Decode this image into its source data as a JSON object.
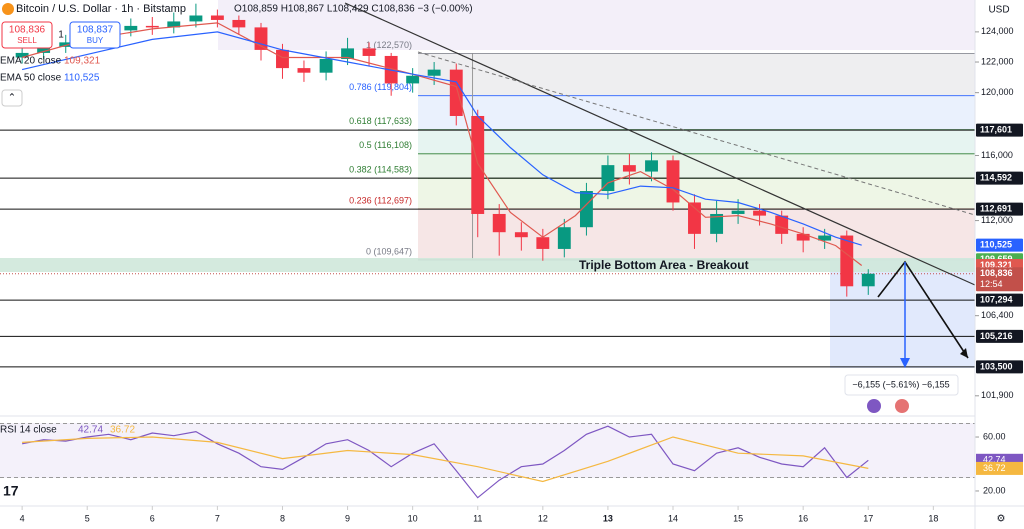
{
  "header": {
    "symbol": "Bitcoin / U.S. Dollar · 1h · Bitstamp",
    "ohlc": "O108,859 H108,867 L108,429 C108,836 −3 (−0.00%)",
    "sell_price": "108,836",
    "sell": "SELL",
    "qty": "1",
    "buy_price": "108,837",
    "buy": "BUY",
    "currency": "USD"
  },
  "chart_data": {
    "type": "candlestick",
    "x": [
      4,
      4.33,
      4.67,
      5,
      5.33,
      5.67,
      6,
      6.33,
      6.67,
      7,
      7.33,
      7.67,
      8,
      8.33,
      8.67,
      9,
      9.33,
      9.67,
      10,
      10.33,
      10.67,
      11,
      11.33,
      11.67,
      12,
      12.33,
      12.67,
      13,
      13.33,
      13.67,
      14,
      14.33,
      14.67,
      15,
      15.33,
      15.67,
      16,
      16.33,
      16.67,
      17
    ],
    "open": [
      122300,
      122600,
      123000,
      123300,
      123700,
      124100,
      124400,
      124300,
      124700,
      125100,
      124800,
      124300,
      122800,
      121600,
      121300,
      122200,
      122900,
      122400,
      120600,
      121100,
      121500,
      118500,
      112400,
      111300,
      111000,
      110300,
      111600,
      113800,
      115400,
      115000,
      115700,
      113100,
      111200,
      112400,
      112600,
      112300,
      111200,
      110800,
      111100,
      108100
    ],
    "high": [
      123100,
      123400,
      123800,
      124200,
      124500,
      124900,
      125000,
      125300,
      125900,
      125500,
      125100,
      124600,
      123200,
      122100,
      122700,
      123600,
      123300,
      122600,
      121600,
      122000,
      121900,
      118900,
      113000,
      111900,
      111500,
      112100,
      114300,
      116000,
      116100,
      116200,
      116000,
      113600,
      113200,
      113300,
      113000,
      112600,
      111600,
      111500,
      111400,
      109100
    ],
    "low": [
      121900,
      122200,
      122600,
      122900,
      123300,
      123700,
      123800,
      123900,
      124300,
      124300,
      123800,
      122100,
      120900,
      120700,
      120800,
      121800,
      121700,
      119800,
      120000,
      120500,
      117900,
      111000,
      109900,
      110200,
      109600,
      109800,
      111100,
      113300,
      114200,
      114400,
      112600,
      110300,
      110700,
      111800,
      111700,
      110600,
      110100,
      110300,
      107500,
      107600
    ],
    "close": [
      122600,
      123000,
      123300,
      123700,
      124100,
      124400,
      124300,
      124700,
      125100,
      124800,
      124300,
      122800,
      121600,
      121300,
      122200,
      122900,
      122400,
      120600,
      121100,
      121500,
      118500,
      112400,
      111300,
      111000,
      110300,
      111600,
      113800,
      115400,
      115000,
      115700,
      113100,
      111200,
      112400,
      112600,
      112300,
      111200,
      110800,
      111100,
      108100,
      108836
    ],
    "up_color": "#089981",
    "down_color": "#f23645",
    "xlim": [
      3.66,
      18.64
    ],
    "xticks": [
      4,
      5,
      6,
      7,
      8,
      9,
      10,
      11,
      12,
      13,
      14,
      15,
      16,
      17,
      18
    ],
    "ylim": [
      100850,
      126150
    ],
    "log_scale": true,
    "yticks": [
      {
        "value": 124000,
        "label": "124,000"
      },
      {
        "value": 122000,
        "label": "122,000"
      },
      {
        "value": 120000,
        "label": "120,000"
      },
      {
        "value": 116000,
        "label": "116,000"
      },
      {
        "value": 112000,
        "label": "112,000"
      },
      {
        "value": 106400,
        "label": "106,400"
      },
      {
        "value": 101900,
        "label": "101,900"
      }
    ],
    "series": [
      {
        "name": "EMA 20 close",
        "color": "#e0584f",
        "value_label": "109,321",
        "last": 109321,
        "x": [
          4,
          5,
          6,
          7,
          8,
          9,
          10,
          10.67,
          11,
          11.5,
          12,
          12.5,
          13,
          13.5,
          14,
          14.5,
          15,
          15.5,
          16,
          16.5,
          16.9
        ],
        "values": [
          122300,
          123500,
          124200,
          124600,
          122300,
          122300,
          121200,
          120400,
          115500,
          112500,
          111000,
          112300,
          114300,
          115000,
          113900,
          112200,
          112300,
          111800,
          111200,
          110500,
          109321
        ]
      },
      {
        "name": "EMA 50 close",
        "color": "#2962ff",
        "value_label": "110,525",
        "last": 110525,
        "x": [
          4,
          5,
          6,
          7,
          8,
          9,
          10,
          10.67,
          11,
          11.5,
          12,
          12.5,
          13,
          13.5,
          14,
          14.5,
          15,
          15.5,
          16,
          16.5,
          16.9
        ],
        "values": [
          121500,
          122500,
          123500,
          124000,
          122800,
          122000,
          121200,
          120700,
          118500,
          116500,
          114800,
          113700,
          113600,
          114100,
          114000,
          113300,
          113100,
          112500,
          111800,
          111000,
          110525
        ]
      }
    ],
    "levels": [
      {
        "value": 117601,
        "label": "117,601"
      },
      {
        "value": 114592,
        "label": "114,592"
      },
      {
        "value": 112691,
        "label": "112,691"
      },
      {
        "value": 107294,
        "label": "107,294"
      },
      {
        "value": 105216,
        "label": "105,216"
      },
      {
        "value": 103500,
        "label": "103,500"
      }
    ],
    "tags": [
      {
        "value": 109659,
        "label": "109,659",
        "color": "#4caf50"
      }
    ],
    "price_tag": {
      "value": 108836,
      "label": "108,836",
      "time": "12:54",
      "color": "#c2504a"
    },
    "fib_levels": [
      {
        "label": "1 (122,570)",
        "value": 122570,
        "color": "#787b86",
        "fill": "#eeeef0"
      },
      {
        "label": "0.786 (119,804)",
        "value": 119804,
        "color": "#2962ff",
        "fill": "#eaf1fd"
      },
      {
        "label": "0.618 (117,633)",
        "value": 117633,
        "color": "#2e7d32",
        "fill": "#e6f4f1"
      },
      {
        "label": "0.5 (116,108)",
        "value": 116108,
        "color": "#2e7d32",
        "fill": "#e9f5ea"
      },
      {
        "label": "0.382 (114,583)",
        "value": 114583,
        "color": "#2e7d32",
        "fill": "#eef6e6"
      },
      {
        "label": "0.236 (112,697)",
        "value": 112697,
        "color": "#c62828",
        "fill": "#f6e6e6"
      },
      {
        "label": "0 (109,647)",
        "value": 109647,
        "color": "#787b86",
        "fill": "none"
      }
    ],
    "annotation": "Triple Bottom Area - Breakout",
    "measure_label": "−6,155 (−5.61%) −6,155",
    "rsi": {
      "title": "RSI 14 close",
      "ylim": [
        9.6,
        74.1
      ],
      "bands": [
        70,
        30
      ],
      "yticks": [
        {
          "value": 60,
          "label": "60.00"
        },
        {
          "value": 20,
          "label": "20.00"
        }
      ],
      "series": [
        {
          "name": "RSI",
          "color": "#7e57c2",
          "value_label": "42.74",
          "x": [
            4,
            4.33,
            4.67,
            5,
            5.33,
            5.67,
            6,
            6.33,
            6.67,
            7,
            7.33,
            7.67,
            8,
            8.33,
            8.67,
            9,
            9.33,
            9.67,
            10,
            10.33,
            10.67,
            11,
            11.33,
            11.67,
            12,
            12.33,
            12.67,
            13,
            13.33,
            13.67,
            14,
            14.33,
            14.67,
            15,
            15.33,
            15.67,
            16,
            16.33,
            16.67,
            17
          ],
          "values": [
            55,
            58,
            57,
            60,
            62,
            58,
            63,
            61,
            64,
            55,
            48,
            38,
            36,
            45,
            55,
            58,
            50,
            38,
            48,
            55,
            35,
            15,
            28,
            38,
            40,
            50,
            62,
            68,
            60,
            62,
            40,
            35,
            48,
            52,
            45,
            40,
            38,
            52,
            30,
            42.74
          ]
        },
        {
          "name": "RSI MA",
          "color": "#f5b841",
          "value_label": "36.72",
          "x": [
            4,
            5,
            6,
            7,
            8,
            9,
            10,
            11,
            12,
            13,
            14,
            15,
            16,
            17
          ],
          "values": [
            56,
            59,
            60,
            56,
            44,
            50,
            47,
            38,
            27,
            42,
            60,
            48,
            46,
            36.72
          ]
        }
      ]
    }
  }
}
